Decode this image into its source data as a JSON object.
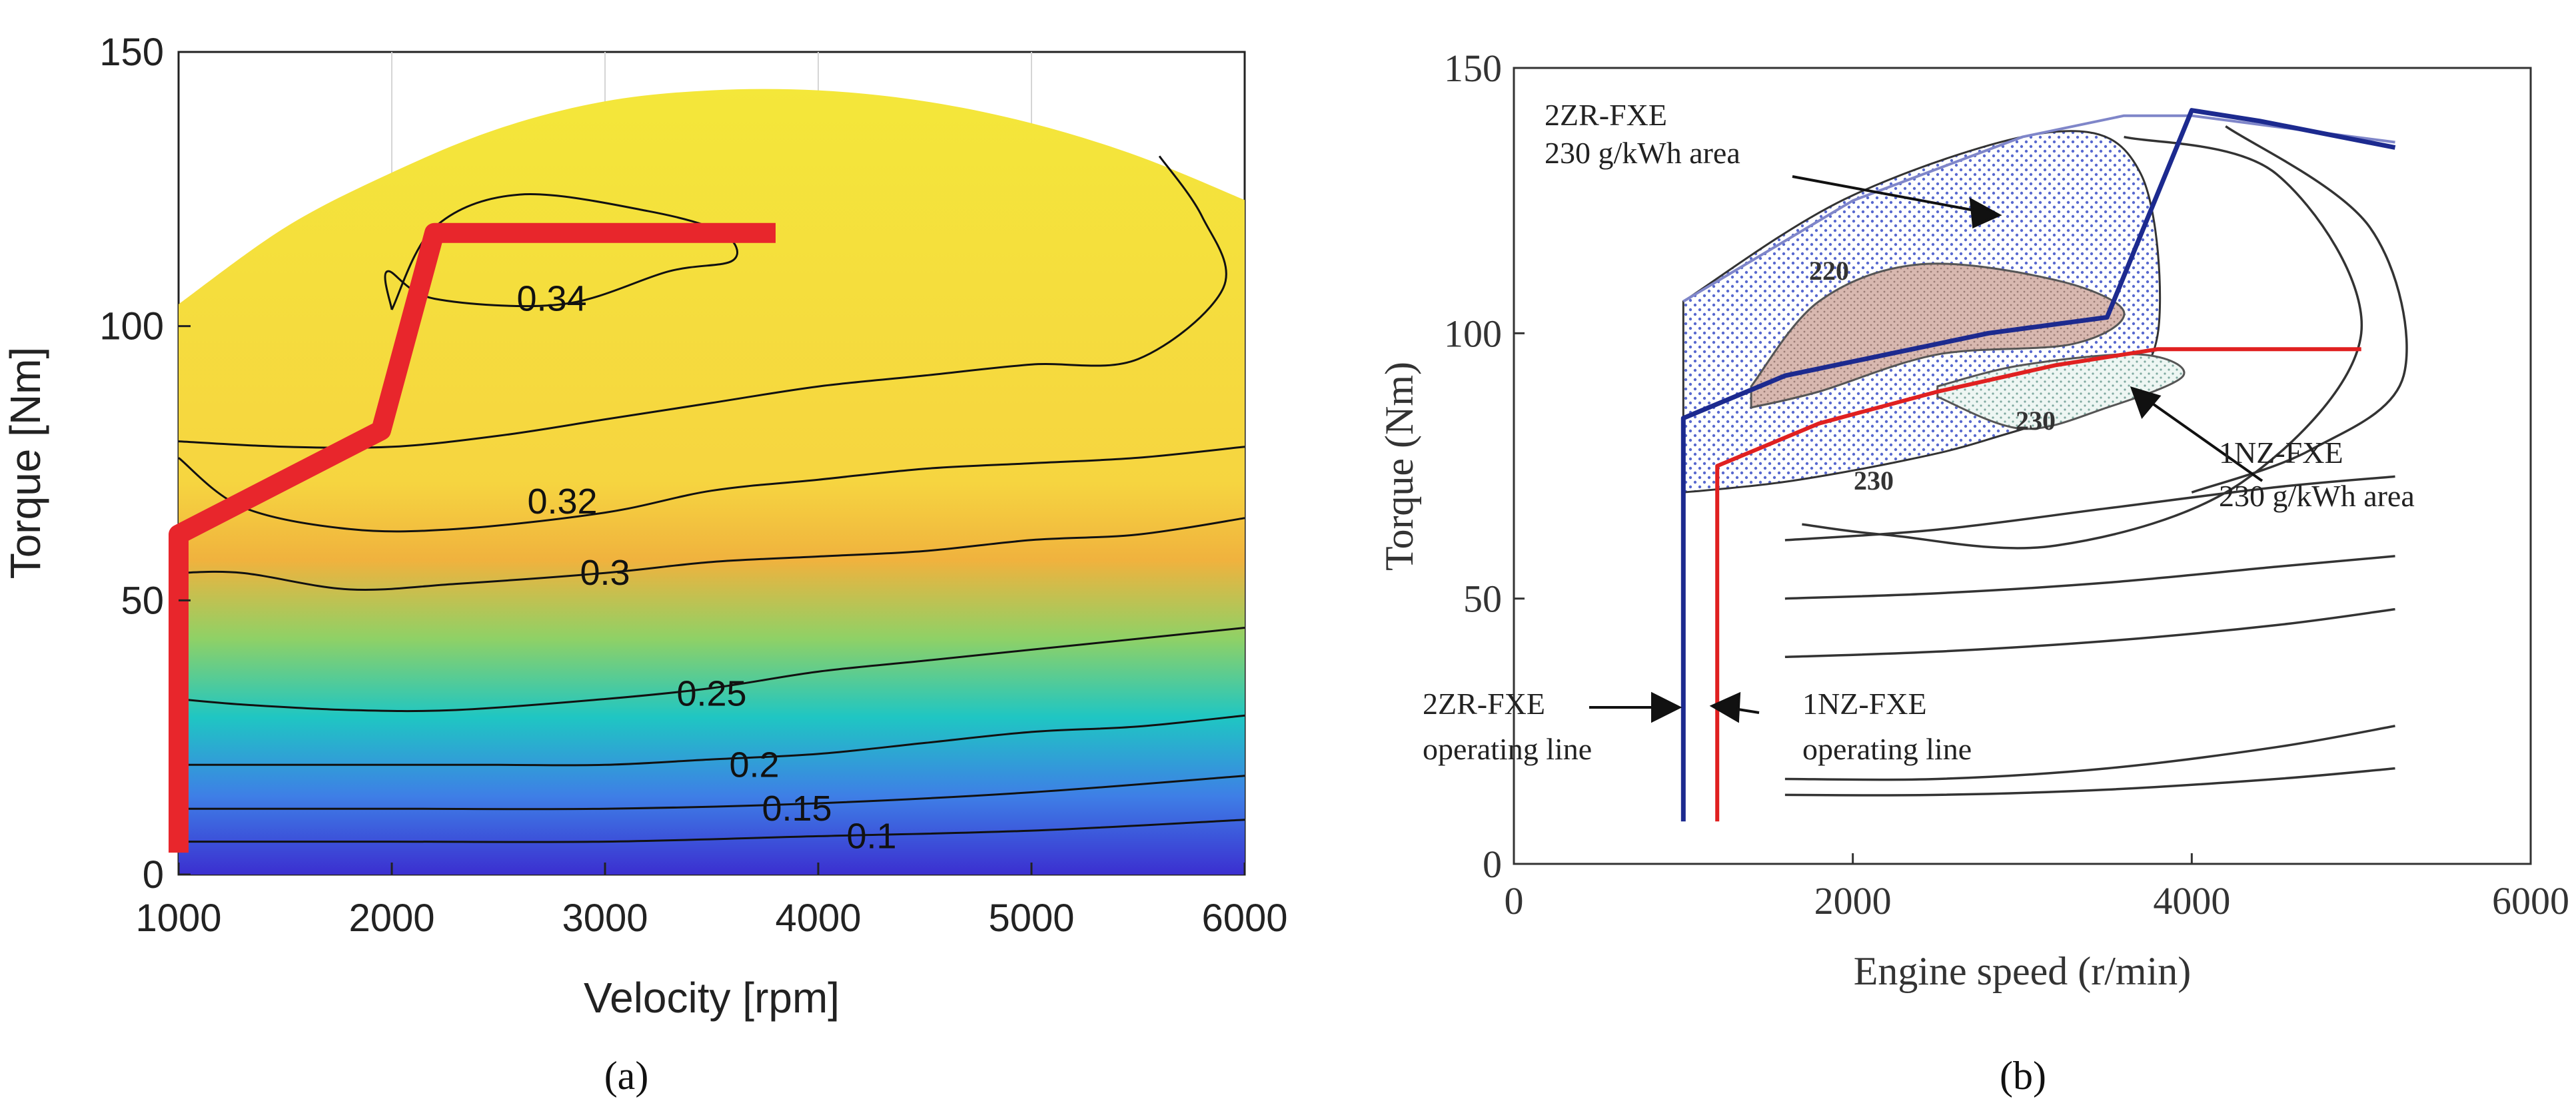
{
  "chart_data": [
    {
      "panel": "a",
      "type": "contour",
      "caption": "(a)",
      "xlabel": "Velocity [rpm]",
      "ylabel": "Torque [Nm]",
      "xlim": [
        1000,
        6000
      ],
      "ylim": [
        0,
        150
      ],
      "xticks": [
        "1000",
        "2000",
        "3000",
        "4000",
        "5000",
        "6000"
      ],
      "yticks": [
        "0",
        "50",
        "100",
        "150"
      ],
      "colors": {
        "low": "#3b2fd0",
        "mid": "#1fc6c3",
        "high": "#f4e73a",
        "operating_line": "#e8262c",
        "contour": "#111111"
      },
      "max_torque_boundary": {
        "x": [
          1000,
          1500,
          2000,
          2500,
          3000,
          3500,
          4000,
          4500,
          5000,
          5500,
          6000
        ],
        "y": [
          104,
          118,
          128,
          136,
          141,
          143,
          143,
          141,
          137,
          131,
          123
        ]
      },
      "contour_lines": [
        {
          "label": "0.34",
          "label_x": 2750,
          "label_y": 105,
          "x": [
            2000,
            2200,
            2600,
            3200,
            3550,
            3600,
            3300,
            2800,
            2200,
            1980,
            2000
          ],
          "y": [
            103,
            118,
            124,
            121,
            117,
            112,
            110,
            104,
            105,
            110,
            103
          ]
        },
        {
          "label": "",
          "x": [
            1000,
            1500,
            2000,
            2500,
            3000,
            3500,
            4000,
            4500,
            5000,
            5500,
            5900,
            5800,
            5600
          ],
          "y": [
            79,
            78,
            78,
            80,
            83,
            86,
            89,
            91,
            93,
            94,
            107,
            120,
            131
          ]
        },
        {
          "label": "0.32",
          "label_x": 2800,
          "label_y": 68,
          "x": [
            1000,
            1300,
            1800,
            2300,
            3000,
            3500,
            4000,
            4500,
            5000,
            5500,
            6000
          ],
          "y": [
            76,
            67,
            63,
            63,
            66,
            70,
            72,
            74,
            75,
            76,
            78
          ]
        },
        {
          "label": "0.3",
          "label_x": 3000,
          "label_y": 55,
          "x": [
            1000,
            1300,
            1800,
            2300,
            3000,
            3500,
            4000,
            4500,
            5000,
            5500,
            6000
          ],
          "y": [
            55,
            55,
            52,
            53,
            55,
            57,
            58,
            59,
            61,
            62,
            65
          ]
        },
        {
          "label": "0.25",
          "label_x": 3500,
          "label_y": 33,
          "x": [
            1000,
            1300,
            1800,
            2300,
            3000,
            3500,
            4000,
            4500,
            5000,
            5500,
            6000
          ],
          "y": [
            32,
            31,
            30,
            30,
            32,
            34,
            37,
            39,
            41,
            43,
            45
          ]
        },
        {
          "label": "0.2",
          "label_x": 3700,
          "label_y": 20,
          "x": [
            1000,
            1500,
            2000,
            2500,
            3000,
            3500,
            4000,
            4500,
            5000,
            5500,
            6000
          ],
          "y": [
            20,
            20,
            20,
            20,
            20,
            21,
            22,
            24,
            26,
            27,
            29
          ]
        },
        {
          "label": "0.15",
          "label_x": 3900,
          "label_y": 12,
          "x": [
            1000,
            2000,
            3000,
            4000,
            5000,
            6000
          ],
          "y": [
            12,
            12,
            12,
            13,
            15,
            18
          ]
        },
        {
          "label": "0.1",
          "label_x": 4250,
          "label_y": 7,
          "x": [
            1000,
            2000,
            3000,
            4000,
            5000,
            6000
          ],
          "y": [
            6,
            6,
            6,
            7,
            8,
            10
          ]
        }
      ],
      "operating_line": {
        "x": [
          1000,
          1000,
          1950,
          2200,
          3800
        ],
        "y": [
          4,
          62,
          81,
          117,
          117
        ]
      }
    },
    {
      "panel": "b",
      "type": "contour",
      "caption": "(b)",
      "xlabel": "Engine speed (r/min)",
      "ylabel": "Torque (Nm)",
      "xlim": [
        0,
        6000
      ],
      "ylim": [
        0,
        150
      ],
      "xticks": [
        "0",
        "2000",
        "4000",
        "6000"
      ],
      "yticks": [
        "0",
        "50",
        "100",
        "150"
      ],
      "colors": {
        "line_2zr": "#1c2a8f",
        "line_1nz": "#e02020",
        "area_2zr": "#3b4fc7",
        "area_220": "#d8b8b0",
        "area_1nz": "#7fa9a0",
        "contour": "#333333"
      },
      "annotations": [
        {
          "text": "2ZR-FXE",
          "line2": "230 g/kWh area"
        },
        {
          "text": "1NZ-FXE",
          "line2": "230 g/kWh area"
        },
        {
          "text": "2ZR-FXE",
          "line2": "operating line"
        },
        {
          "text": "1NZ-FXE",
          "line2": "operating line"
        }
      ],
      "contour_labels": [
        "220",
        "230",
        "230"
      ],
      "series": [
        {
          "name": "2ZR-FXE max torque",
          "x": [
            1000,
            2000,
            3000,
            3600,
            4000,
            5200
          ],
          "y": [
            106,
            125,
            137,
            141,
            141,
            136
          ]
        },
        {
          "name": "2ZR-FXE operating line",
          "x": [
            1000,
            1000,
            1600,
            2200,
            2800,
            3500,
            4000,
            4400,
            5200
          ],
          "y": [
            8,
            84,
            92,
            96,
            100,
            103,
            142,
            140,
            135
          ]
        },
        {
          "name": "1NZ-FXE operating line",
          "x": [
            1200,
            1200,
            1800,
            2500,
            3200,
            3800,
            4300,
            5000
          ],
          "y": [
            8,
            75,
            83,
            89,
            94,
            97,
            97,
            97
          ]
        }
      ],
      "regions": [
        {
          "name": "2ZR-FXE 230 g/kWh area",
          "x": [
            1000,
            2000,
            3200,
            3700,
            3800,
            3500,
            2800,
            2300,
            1600,
            1000
          ],
          "y": [
            106,
            126,
            138,
            130,
            100,
            88,
            80,
            76,
            72,
            70
          ]
        },
        {
          "name": "220 area",
          "x": [
            1400,
            1800,
            2400,
            3200,
            3600,
            3300,
            2500,
            1800,
            1400
          ],
          "y": [
            90,
            106,
            113,
            110,
            104,
            98,
            96,
            89,
            86
          ]
        },
        {
          "name": "1NZ-FXE 230 g/kWh area",
          "x": [
            2500,
            3000,
            3700,
            3950,
            3500,
            3000,
            2500
          ],
          "y": [
            90,
            94,
            96,
            92,
            86,
            82,
            88
          ]
        }
      ],
      "lower_contours": [
        {
          "x": [
            1600,
            2500,
            3500,
            4500,
            5200
          ],
          "y": [
            61,
            63,
            67,
            71,
            73
          ]
        },
        {
          "x": [
            1600,
            2500,
            3500,
            4500,
            5200
          ],
          "y": [
            50,
            51,
            53,
            56,
            58
          ]
        },
        {
          "x": [
            1600,
            2500,
            3500,
            4500,
            5200
          ],
          "y": [
            39,
            40,
            42,
            45,
            48
          ]
        },
        {
          "x": [
            1600,
            2500,
            3500,
            4500,
            5200
          ],
          "y": [
            16,
            16,
            18,
            22,
            26
          ]
        },
        {
          "x": [
            1600,
            2500,
            3500,
            4500,
            5200
          ],
          "y": [
            13,
            13,
            14,
            16,
            18
          ]
        }
      ]
    }
  ]
}
